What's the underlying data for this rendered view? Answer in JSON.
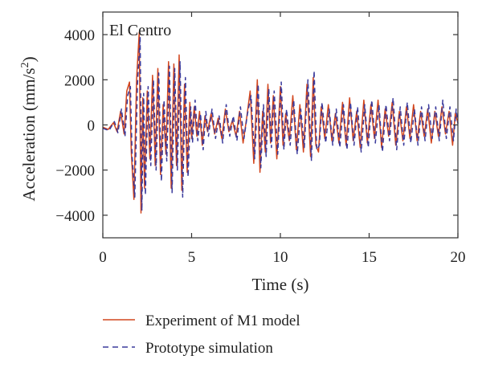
{
  "chart_data": {
    "type": "line",
    "title": "El Centro",
    "xlabel": "Time (s)",
    "ylabel": "Acceleration (mm/s",
    "ylabel_superscript": "2",
    "ylabel_close": ")",
    "xlim": [
      0,
      20
    ],
    "ylim": [
      -5000,
      5000
    ],
    "x_ticks": [
      0,
      5,
      10,
      15,
      20
    ],
    "x_tick_labels": [
      "0",
      "5",
      "10",
      "15",
      "20"
    ],
    "y_ticks": [
      4000,
      2000,
      0,
      -2000,
      -4000
    ],
    "y_tick_labels": [
      "4000",
      "2000",
      "0",
      "−2000",
      "−4000"
    ],
    "grid": false,
    "legend_position": "below",
    "series": [
      {
        "name": "Experiment of M1 model",
        "color": "#d2461e",
        "style": "solid",
        "x": [
          0.0,
          0.3,
          0.6,
          0.8,
          1.0,
          1.2,
          1.35,
          1.5,
          1.6,
          1.75,
          1.9,
          2.05,
          2.15,
          2.25,
          2.35,
          2.5,
          2.65,
          2.8,
          2.95,
          3.1,
          3.25,
          3.4,
          3.55,
          3.7,
          3.85,
          4.0,
          4.15,
          4.3,
          4.45,
          4.6,
          4.75,
          4.9,
          5.0,
          5.15,
          5.3,
          5.45,
          5.6,
          5.75,
          5.9,
          6.1,
          6.3,
          6.5,
          6.7,
          6.9,
          7.1,
          7.3,
          7.5,
          7.7,
          7.9,
          8.1,
          8.3,
          8.5,
          8.7,
          8.85,
          9.0,
          9.15,
          9.3,
          9.45,
          9.6,
          9.8,
          10.0,
          10.15,
          10.3,
          10.5,
          10.7,
          10.9,
          11.1,
          11.3,
          11.5,
          11.7,
          11.85,
          12.0,
          12.15,
          12.3,
          12.5,
          12.7,
          12.9,
          13.1,
          13.3,
          13.5,
          13.7,
          13.9,
          14.1,
          14.3,
          14.5,
          14.7,
          14.9,
          15.1,
          15.3,
          15.5,
          15.7,
          15.9,
          16.1,
          16.3,
          16.5,
          16.7,
          16.9,
          17.1,
          17.3,
          17.5,
          17.7,
          17.9,
          18.1,
          18.3,
          18.5,
          18.7,
          18.9,
          19.1,
          19.3,
          19.5,
          19.7,
          19.85,
          20.0
        ],
        "y": [
          -100,
          -200,
          100,
          -300,
          600,
          -400,
          1500,
          1900,
          -1200,
          -3300,
          2000,
          4100,
          -3900,
          1200,
          -2800,
          1500,
          -1500,
          2200,
          -1800,
          2500,
          -2200,
          900,
          -1300,
          2800,
          -2800,
          2700,
          -1800,
          3100,
          -2900,
          1800,
          -2100,
          1000,
          -600,
          800,
          -500,
          600,
          -900,
          400,
          -300,
          500,
          -400,
          300,
          -600,
          700,
          -300,
          200,
          -500,
          600,
          -800,
          300,
          1500,
          -1700,
          2000,
          -2100,
          600,
          -1200,
          1800,
          -800,
          1300,
          -1500,
          1700,
          -900,
          500,
          -700,
          1300,
          -1100,
          900,
          -1200,
          1800,
          -1400,
          2100,
          -900,
          -1200,
          800,
          -600,
          900,
          -700,
          500,
          -800,
          1000,
          -900,
          1200,
          -700,
          600,
          -1000,
          1100,
          -800,
          900,
          -600,
          1100,
          -1000,
          700,
          -500,
          1000,
          -900,
          600,
          -700,
          800,
          -600,
          900,
          -700,
          600,
          -500,
          700,
          -800,
          600,
          -500,
          800,
          -400,
          600,
          -900,
          500,
          100
        ]
      },
      {
        "name": "Prototype simulation",
        "color": "#3a3a9c",
        "style": "dashed",
        "x": [
          0.0,
          0.35,
          0.65,
          0.85,
          1.05,
          1.25,
          1.4,
          1.55,
          1.65,
          1.8,
          1.95,
          2.1,
          2.2,
          2.3,
          2.4,
          2.55,
          2.7,
          2.85,
          3.0,
          3.15,
          3.3,
          3.45,
          3.6,
          3.75,
          3.9,
          4.05,
          4.2,
          4.35,
          4.5,
          4.65,
          4.8,
          4.95,
          5.05,
          5.2,
          5.35,
          5.5,
          5.65,
          5.8,
          5.95,
          6.15,
          6.35,
          6.55,
          6.75,
          6.95,
          7.15,
          7.35,
          7.55,
          7.75,
          7.95,
          8.15,
          8.35,
          8.55,
          8.75,
          8.9,
          9.05,
          9.2,
          9.35,
          9.5,
          9.65,
          9.85,
          10.05,
          10.2,
          10.35,
          10.55,
          10.75,
          10.95,
          11.15,
          11.35,
          11.55,
          11.75,
          11.9,
          12.05,
          12.2,
          12.35,
          12.55,
          12.75,
          12.95,
          13.15,
          13.35,
          13.55,
          13.75,
          13.95,
          14.15,
          14.35,
          14.55,
          14.75,
          14.95,
          15.15,
          15.35,
          15.55,
          15.75,
          15.95,
          16.15,
          16.35,
          16.55,
          16.75,
          16.95,
          17.15,
          17.35,
          17.55,
          17.75,
          17.95,
          18.15,
          18.35,
          18.55,
          18.75,
          18.95,
          19.15,
          19.35,
          19.55,
          19.75,
          19.9,
          20.0
        ],
        "y": [
          -150,
          -250,
          150,
          -350,
          700,
          -500,
          1300,
          1700,
          -1400,
          -3200,
          1800,
          3900,
          -3800,
          1400,
          -3100,
          1700,
          -1800,
          2000,
          -2000,
          2300,
          -2500,
          1100,
          -1600,
          2600,
          -3000,
          2500,
          -2000,
          2800,
          -3200,
          2100,
          -2300,
          800,
          -800,
          1100,
          -700,
          500,
          -1100,
          600,
          -500,
          700,
          -600,
          400,
          -800,
          900,
          -500,
          400,
          -700,
          800,
          -600,
          500,
          1300,
          -1500,
          1800,
          -1900,
          900,
          -1400,
          1600,
          -1000,
          1500,
          -1300,
          1900,
          -1100,
          700,
          -900,
          1100,
          -1300,
          700,
          -1000,
          2000,
          -1600,
          2400,
          -1100,
          -900,
          1000,
          -800,
          700,
          -900,
          700,
          -1000,
          900,
          -1100,
          1000,
          -900,
          800,
          -1200,
          900,
          -1000,
          1100,
          -800,
          900,
          -1200,
          900,
          -700,
          1200,
          -1100,
          800,
          -900,
          1000,
          -800,
          700,
          -900,
          800,
          -700,
          900,
          -600,
          800,
          -700,
          1100,
          -600,
          800,
          -700,
          700,
          50
        ]
      }
    ]
  }
}
